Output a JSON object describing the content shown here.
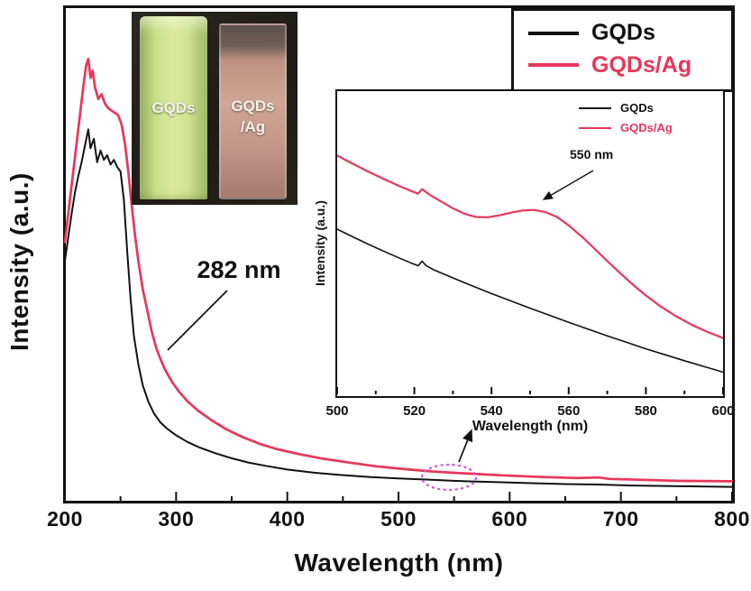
{
  "photo": {
    "left_label": "GQDs",
    "right_label_line1": "GQDs",
    "right_label_line2": "/Ag"
  },
  "colors": {
    "gqds": "#111111",
    "gqds_ag": "#e7365a",
    "ellipse": "#d651c8"
  },
  "chart_data": [
    {
      "type": "line",
      "xlabel": "Wavelength (nm)",
      "ylabel": "Intensity (a.u.)",
      "xlim": [
        200,
        800
      ],
      "ylim": [
        0,
        1.05
      ],
      "xticks": [
        200,
        300,
        400,
        500,
        600,
        700,
        800
      ],
      "grid": false,
      "legend_position": "top-right",
      "annotations": [
        {
          "text": "282 nm",
          "x": 282,
          "y": 0.315
        },
        {
          "text": "circled region near 550 nm with arrow to inset",
          "x": 550,
          "y": 0.04
        }
      ],
      "series": [
        {
          "name": "GQDs",
          "color": "#111111",
          "points": [
            [
              200,
              0.5
            ],
            [
              203,
              0.55
            ],
            [
              206,
              0.6
            ],
            [
              209,
              0.645
            ],
            [
              212,
              0.68
            ],
            [
              215,
              0.71
            ],
            [
              218,
              0.745
            ],
            [
              221,
              0.78
            ],
            [
              223,
              0.74
            ],
            [
              226,
              0.76
            ],
            [
              229,
              0.71
            ],
            [
              232,
              0.735
            ],
            [
              235,
              0.715
            ],
            [
              238,
              0.725
            ],
            [
              241,
              0.705
            ],
            [
              244,
              0.715
            ],
            [
              247,
              0.7
            ],
            [
              250,
              0.69
            ],
            [
              253,
              0.63
            ],
            [
              256,
              0.52
            ],
            [
              259,
              0.42
            ],
            [
              262,
              0.34
            ],
            [
              266,
              0.28
            ],
            [
              270,
              0.235
            ],
            [
              275,
              0.2
            ],
            [
              280,
              0.175
            ],
            [
              286,
              0.155
            ],
            [
              292,
              0.142
            ],
            [
              300,
              0.128
            ],
            [
              310,
              0.114
            ],
            [
              320,
              0.103
            ],
            [
              335,
              0.09
            ],
            [
              350,
              0.079
            ],
            [
              365,
              0.07
            ],
            [
              380,
              0.063
            ],
            [
              400,
              0.055
            ],
            [
              425,
              0.048
            ],
            [
              450,
              0.043
            ],
            [
              475,
              0.039
            ],
            [
              500,
              0.036
            ],
            [
              530,
              0.033
            ],
            [
              560,
              0.03
            ],
            [
              590,
              0.028
            ],
            [
              620,
              0.026
            ],
            [
              650,
              0.024
            ],
            [
              680,
              0.023
            ],
            [
              710,
              0.021
            ],
            [
              740,
              0.02
            ],
            [
              770,
              0.019
            ],
            [
              800,
              0.018
            ]
          ]
        },
        {
          "name": "GQDs/Ag",
          "color": "#e7365a",
          "points": [
            [
              200,
              0.54
            ],
            [
              203,
              0.6
            ],
            [
              206,
              0.66
            ],
            [
              209,
              0.72
            ],
            [
              212,
              0.78
            ],
            [
              215,
              0.84
            ],
            [
              217,
              0.88
            ],
            [
              219,
              0.915
            ],
            [
              221,
              0.93
            ],
            [
              223,
              0.89
            ],
            [
              225,
              0.905
            ],
            [
              227,
              0.87
            ],
            [
              230,
              0.845
            ],
            [
              233,
              0.855
            ],
            [
              236,
              0.835
            ],
            [
              239,
              0.825
            ],
            [
              242,
              0.82
            ],
            [
              245,
              0.815
            ],
            [
              248,
              0.81
            ],
            [
              251,
              0.79
            ],
            [
              254,
              0.75
            ],
            [
              257,
              0.69
            ],
            [
              260,
              0.62
            ],
            [
              263,
              0.555
            ],
            [
              266,
              0.5
            ],
            [
              270,
              0.44
            ],
            [
              274,
              0.395
            ],
            [
              278,
              0.35
            ],
            [
              282,
              0.315
            ],
            [
              286,
              0.29
            ],
            [
              290,
              0.268
            ],
            [
              296,
              0.243
            ],
            [
              302,
              0.223
            ],
            [
              310,
              0.201
            ],
            [
              320,
              0.18
            ],
            [
              332,
              0.16
            ],
            [
              345,
              0.141
            ],
            [
              360,
              0.124
            ],
            [
              375,
              0.11
            ],
            [
              390,
              0.099
            ],
            [
              410,
              0.088
            ],
            [
              430,
              0.079
            ],
            [
              455,
              0.07
            ],
            [
              480,
              0.062
            ],
            [
              505,
              0.056
            ],
            [
              530,
              0.051
            ],
            [
              550,
              0.048
            ],
            [
              575,
              0.045
            ],
            [
              600,
              0.042
            ],
            [
              630,
              0.039
            ],
            [
              660,
              0.037
            ],
            [
              680,
              0.038
            ],
            [
              690,
              0.035
            ],
            [
              720,
              0.033
            ],
            [
              750,
              0.031
            ],
            [
              800,
              0.03
            ]
          ]
        }
      ]
    },
    {
      "type": "line",
      "xlabel": "Wavelength (nm)",
      "ylabel": "Intensity (a.u.)",
      "xlim": [
        500,
        600
      ],
      "ylim": [
        0,
        1.0
      ],
      "xticks": [
        500,
        520,
        540,
        560,
        580,
        600
      ],
      "grid": false,
      "legend_position": "top-right",
      "annotations": [
        {
          "text": "550 nm",
          "x": 550,
          "y": 0.671
        }
      ],
      "series": [
        {
          "name": "GQDs",
          "color": "#111111",
          "points": [
            [
              500,
              0.6
            ],
            [
              504,
              0.572
            ],
            [
              508,
              0.545
            ],
            [
              512,
              0.519
            ],
            [
              516,
              0.494
            ],
            [
              519,
              0.476
            ],
            [
              521,
              0.465
            ],
            [
              522,
              0.482
            ],
            [
              523,
              0.466
            ],
            [
              525,
              0.45
            ],
            [
              528,
              0.432
            ],
            [
              532,
              0.408
            ],
            [
              536,
              0.385
            ],
            [
              540,
              0.362
            ],
            [
              545,
              0.335
            ],
            [
              550,
              0.308
            ],
            [
              555,
              0.282
            ],
            [
              560,
              0.256
            ],
            [
              565,
              0.231
            ],
            [
              570,
              0.206
            ],
            [
              575,
              0.182
            ],
            [
              580,
              0.158
            ],
            [
              585,
              0.136
            ],
            [
              590,
              0.114
            ],
            [
              595,
              0.093
            ],
            [
              600,
              0.072
            ]
          ]
        },
        {
          "name": "GQDs/Ag",
          "color": "#e7365a",
          "points": [
            [
              500,
              0.872
            ],
            [
              504,
              0.842
            ],
            [
              508,
              0.813
            ],
            [
              512,
              0.786
            ],
            [
              516,
              0.76
            ],
            [
              519,
              0.742
            ],
            [
              521,
              0.731
            ],
            [
              522,
              0.748
            ],
            [
              524,
              0.727
            ],
            [
              527,
              0.702
            ],
            [
              530,
              0.677
            ],
            [
              533,
              0.657
            ],
            [
              536,
              0.645
            ],
            [
              539,
              0.644
            ],
            [
              542,
              0.651
            ],
            [
              545,
              0.661
            ],
            [
              548,
              0.669
            ],
            [
              551,
              0.671
            ],
            [
              554,
              0.663
            ],
            [
              557,
              0.645
            ],
            [
              560,
              0.614
            ],
            [
              564,
              0.565
            ],
            [
              568,
              0.51
            ],
            [
              572,
              0.455
            ],
            [
              576,
              0.403
            ],
            [
              580,
              0.355
            ],
            [
              584,
              0.313
            ],
            [
              588,
              0.277
            ],
            [
              592,
              0.246
            ],
            [
              596,
              0.22
            ],
            [
              600,
              0.198
            ]
          ]
        }
      ]
    }
  ]
}
